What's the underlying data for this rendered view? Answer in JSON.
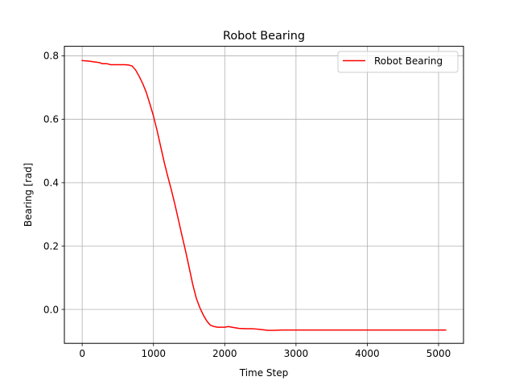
{
  "chart_data": {
    "type": "line",
    "title": "Robot Bearing",
    "xlabel": "Time Step",
    "ylabel": "Bearing [rad]",
    "xlim": [
      -250,
      5350
    ],
    "ylim": [
      -0.107,
      0.83
    ],
    "xticks": [
      0,
      1000,
      2000,
      3000,
      4000,
      5000
    ],
    "yticks": [
      0.0,
      0.2,
      0.4,
      0.6,
      0.8
    ],
    "xtick_labels": [
      "0",
      "1000",
      "2000",
      "3000",
      "4000",
      "5000"
    ],
    "ytick_labels": [
      "0.0",
      "0.2",
      "0.4",
      "0.6",
      "0.8"
    ],
    "grid": true,
    "legend_position": "top-right",
    "series": [
      {
        "name": "Robot Bearing",
        "color": "#ff0000",
        "x": [
          0,
          100,
          200,
          250,
          280,
          300,
          350,
          400,
          450,
          500,
          550,
          600,
          650,
          700,
          750,
          800,
          850,
          900,
          950,
          1000,
          1050,
          1100,
          1150,
          1200,
          1250,
          1300,
          1350,
          1400,
          1450,
          1500,
          1550,
          1600,
          1650,
          1700,
          1750,
          1800,
          1850,
          1900,
          1950,
          2000,
          2050,
          2100,
          2150,
          2200,
          2300,
          2400,
          2500,
          2600,
          2700,
          2800,
          3000,
          3500,
          4000,
          4500,
          5100
        ],
        "y": [
          0.785,
          0.783,
          0.78,
          0.778,
          0.775,
          0.775,
          0.775,
          0.772,
          0.772,
          0.772,
          0.772,
          0.772,
          0.771,
          0.768,
          0.755,
          0.735,
          0.712,
          0.684,
          0.648,
          0.61,
          0.565,
          0.515,
          0.465,
          0.42,
          0.378,
          0.332,
          0.283,
          0.233,
          0.185,
          0.133,
          0.08,
          0.036,
          0.006,
          -0.018,
          -0.037,
          -0.05,
          -0.054,
          -0.056,
          -0.056,
          -0.056,
          -0.054,
          -0.056,
          -0.058,
          -0.06,
          -0.061,
          -0.061,
          -0.063,
          -0.066,
          -0.066,
          -0.065,
          -0.065,
          -0.065,
          -0.065,
          -0.065,
          -0.065
        ]
      }
    ]
  }
}
